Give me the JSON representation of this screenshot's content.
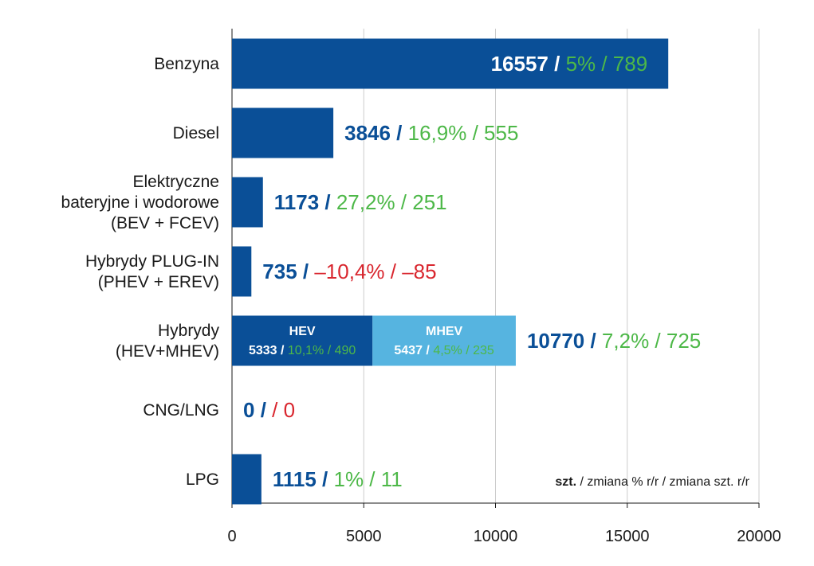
{
  "chart_data": {
    "type": "bar",
    "orientation": "horizontal",
    "xlim": [
      0,
      20000
    ],
    "x_ticks": [
      "0",
      "5000",
      "10000",
      "15000",
      "20000"
    ],
    "grid": true,
    "categories": [
      {
        "label": [
          "Benzyna"
        ],
        "value": 16557,
        "text_value": "16557",
        "change_pct": "5%",
        "change_units": "789",
        "trend": "up"
      },
      {
        "label": [
          "Diesel"
        ],
        "value": 3846,
        "text_value": "3846",
        "change_pct": "16,9%",
        "change_units": "555",
        "trend": "up"
      },
      {
        "label": [
          "Elektryczne",
          "bateryjne i wodorowe",
          "(BEV + FCEV)"
        ],
        "value": 1173,
        "text_value": "1173",
        "change_pct": "27,2%",
        "change_units": "251",
        "trend": "up"
      },
      {
        "label": [
          "Hybrydy PLUG-IN",
          "(PHEV + EREV)"
        ],
        "value": 735,
        "text_value": "735",
        "change_pct": "–10,4%",
        "change_units": "–85",
        "trend": "down"
      },
      {
        "label": [
          "Hybrydy",
          "(HEV+MHEV)"
        ],
        "value": 10770,
        "text_value": "10770",
        "change_pct": "7,2%",
        "change_units": "725",
        "trend": "up",
        "segments": [
          {
            "name": "HEV",
            "value": 5333,
            "text_value": "5333",
            "change_pct": "10,1%",
            "change_units": "490",
            "color": "#0a4f97"
          },
          {
            "name": "MHEV",
            "value": 5437,
            "text_value": "5437",
            "change_pct": "4,5%",
            "change_units": "235",
            "color": "#56b4e0"
          }
        ]
      },
      {
        "label": [
          "CNG/LNG"
        ],
        "value": 0,
        "text_value": "0",
        "change_pct": "",
        "change_units": "0",
        "trend": "down"
      },
      {
        "label": [
          "LPG"
        ],
        "value": 1115,
        "text_value": "1115",
        "change_pct": "1%",
        "change_units": "11",
        "trend": "up"
      }
    ],
    "legend_note": {
      "bold": "szt.",
      "rest": " / zmiana % r/r / zmiana szt. r/r"
    }
  },
  "colors": {
    "bar": "#0a4f97",
    "positive": "#4db848",
    "negative": "#d9262e",
    "grid": "#cccccc",
    "axis": "#1a1a1a",
    "label": "#1a1a1a"
  }
}
